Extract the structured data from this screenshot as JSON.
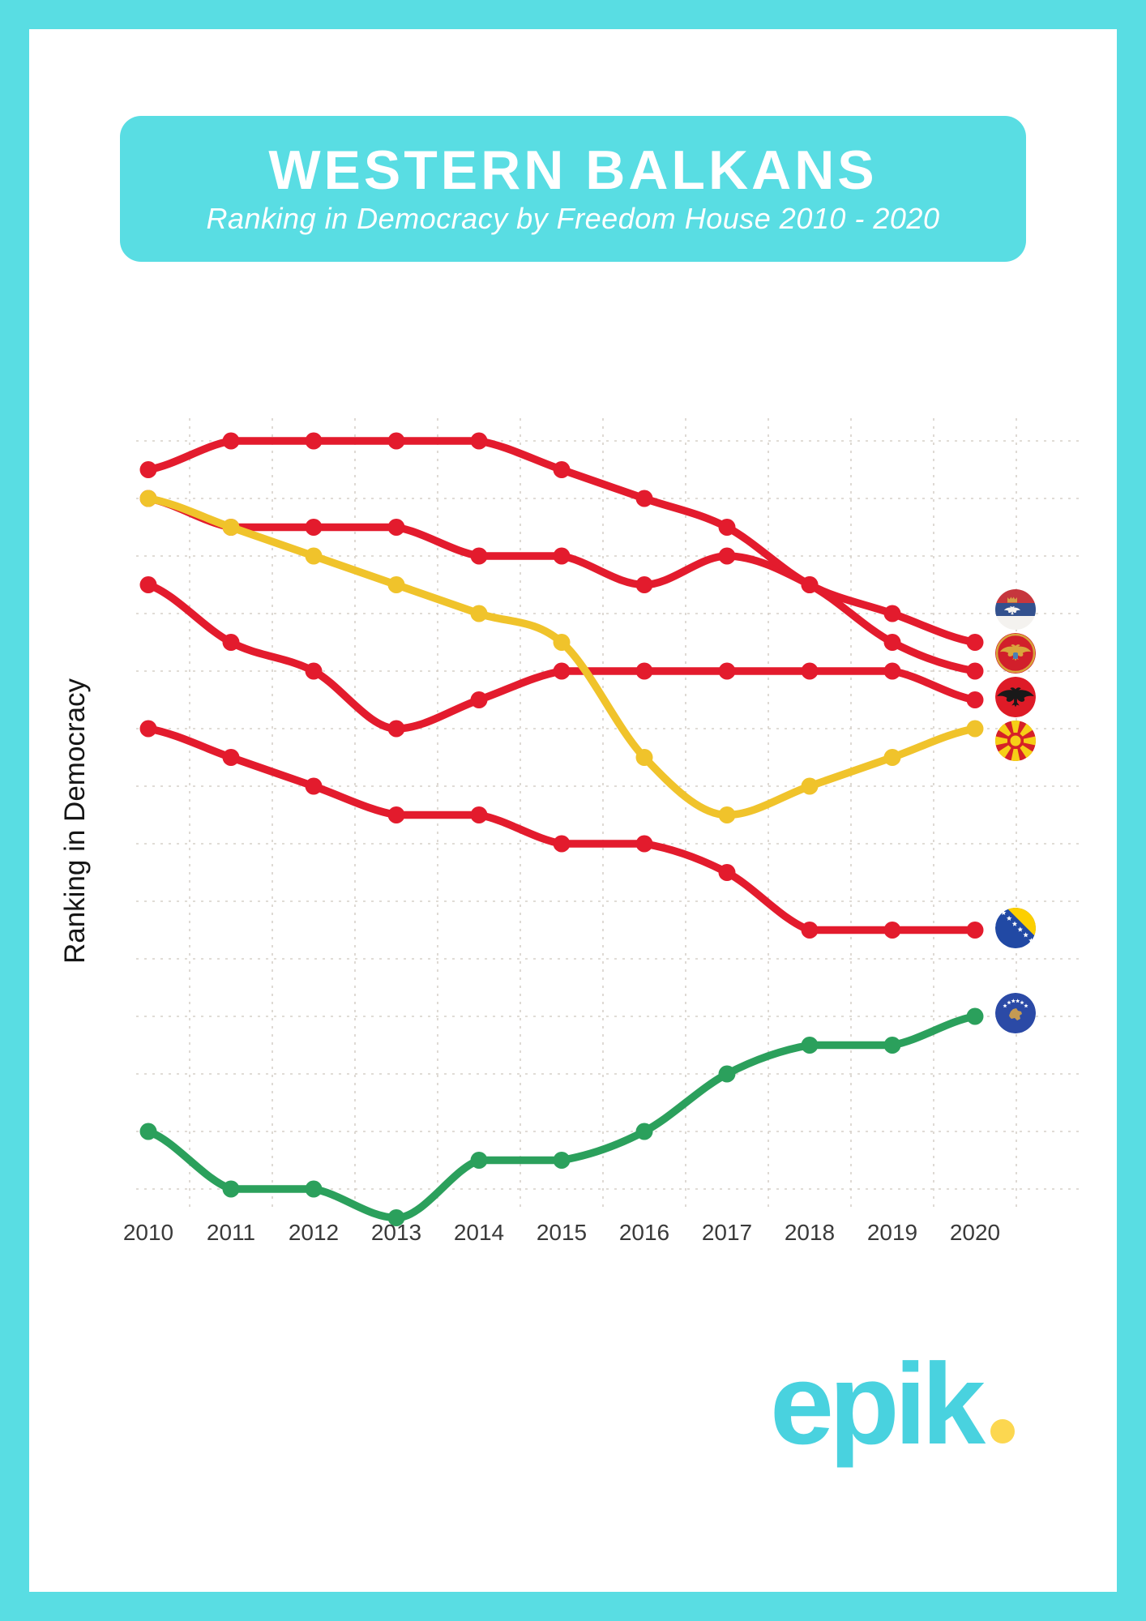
{
  "header": {
    "title": "WESTERN BALKANS",
    "subtitle": "Ranking in Democracy by Freedom House 2010 - 2020"
  },
  "chart_data": {
    "type": "line",
    "title": "Western Balkans ranking in democracy by Freedom House 2010 - 2020",
    "xlabel": "",
    "ylabel": "Ranking in Democracy",
    "x": [
      2010,
      2011,
      2012,
      2013,
      2014,
      2015,
      2016,
      2017,
      2018,
      2019,
      2020
    ],
    "yticks_shown": false,
    "ylim": [
      -1,
      13.5
    ],
    "grid": "dashed both axes, numeric scale not labeled (relative ranking units)",
    "legend": "country flag badges at right end of each line",
    "series": [
      {
        "id": "serbia",
        "name": "Serbia",
        "color": "#e31b2d",
        "values": [
          12.5,
          13,
          13,
          13,
          13,
          12.5,
          12,
          11.5,
          10.5,
          10,
          9.5
        ]
      },
      {
        "id": "montenegro",
        "name": "Montenegro",
        "color": "#e31b2d",
        "values": [
          12,
          11.5,
          11.5,
          11.5,
          11,
          11,
          10.5,
          11,
          10.5,
          9.5,
          9
        ]
      },
      {
        "id": "north_macedonia",
        "name": "North Macedonia",
        "color": "#f0c32b",
        "values": [
          12,
          11.5,
          11,
          10.5,
          10,
          9.5,
          7.5,
          6.5,
          7,
          7.5,
          8
        ]
      },
      {
        "id": "albania",
        "name": "Albania",
        "color": "#e31b2d",
        "values": [
          10.5,
          9.5,
          9,
          8,
          8.5,
          9,
          9,
          9,
          9,
          9,
          8.5
        ]
      },
      {
        "id": "bosnia",
        "name": "Bosnia and Herzegovina",
        "color": "#e31b2d",
        "values": [
          8,
          7.5,
          7,
          6.5,
          6.5,
          6,
          6,
          5.5,
          4.5,
          4.5,
          4.5
        ]
      },
      {
        "id": "kosovo",
        "name": "Kosovo",
        "color": "#2ba05c",
        "values": [
          1,
          0,
          0,
          -0.5,
          0.5,
          0.5,
          1,
          2,
          2.5,
          2.5,
          3
        ]
      }
    ]
  },
  "footer": {
    "logo_text": "epik",
    "logo_color": "#49d2df",
    "logo_dot_color": "#fcd750"
  },
  "colors": {
    "frame_teal": "#59dde3",
    "line_red": "#e31b2d",
    "line_yellow": "#f0c32b",
    "line_green": "#2ba05c",
    "grid": "#d6d0c9",
    "axis_text": "#3a3a3a"
  }
}
